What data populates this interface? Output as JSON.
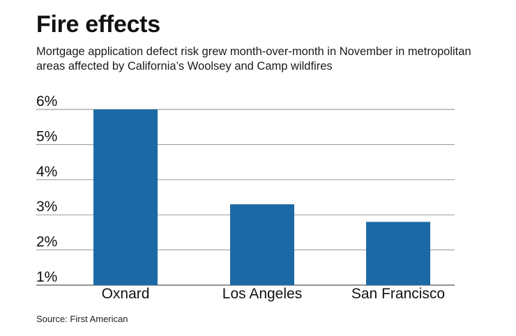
{
  "header": {
    "title": "Fire effects",
    "subtitle": "Mortgage application defect risk grew month-over-month in November in metropolitan areas affected by California’s Woolsey and Camp wildfires"
  },
  "footer": {
    "source": "Source: First American"
  },
  "colors": {
    "bar": "#1b6aa5",
    "grid": "#8a8a8a",
    "text": "#111111"
  },
  "chart_data": {
    "type": "bar",
    "title": "Fire effects",
    "xlabel": "",
    "ylabel": "",
    "categories": [
      "Oxnard",
      "Los Angeles",
      "San Francisco"
    ],
    "values": [
      6.0,
      3.3,
      2.8
    ],
    "ylim": [
      1,
      6
    ],
    "yticks": [
      1,
      2,
      3,
      4,
      5,
      6
    ],
    "ytick_labels": [
      "1%",
      "2%",
      "3%",
      "4%",
      "5%",
      "6%"
    ],
    "grid": true,
    "legend": "none"
  }
}
